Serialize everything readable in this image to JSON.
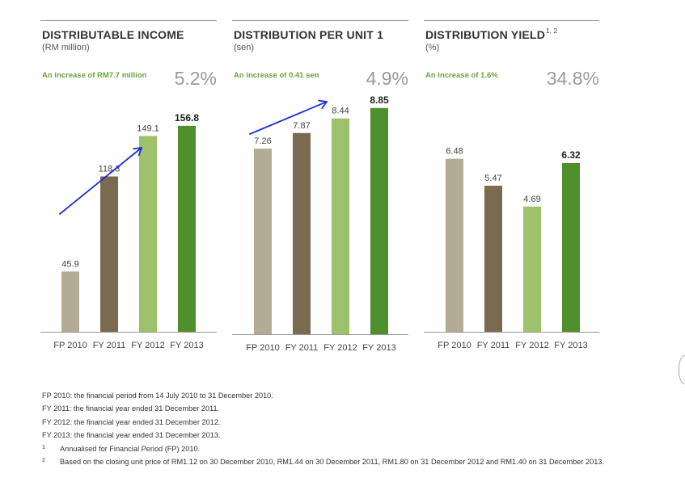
{
  "colors": [
    "#b3ab95",
    "#7a6a4f",
    "#9ec16b",
    "#4f8f2c"
  ],
  "annotation_color": "#1f2fd0",
  "chart_data": [
    {
      "type": "bar",
      "title": "DISTRIBUTABLE INCOME",
      "title_sup": "",
      "subtitle": "(RM million)",
      "increase_text": "An increase of RM7.7 million",
      "change_pct": "5.2%",
      "categories": [
        "FP 2010",
        "FY 2011",
        "FY 2012",
        "FY 2013"
      ],
      "values": [
        45.9,
        118.3,
        149.1,
        156.8
      ],
      "value_labels": [
        "45.9",
        "118.3",
        "149.1",
        "156.8"
      ],
      "ylim": [
        0,
        185
      ],
      "highlight_last": true,
      "annotation": "upward-arrow"
    },
    {
      "type": "bar",
      "title": "DISTRIBUTION PER UNIT 1",
      "title_sup": "",
      "subtitle": "(sen)",
      "increase_text": "An increase of 0.41 sen",
      "change_pct": "4.9%",
      "categories": [
        "FP 2010",
        "FY 2011",
        "FY 2012",
        "FY 2013"
      ],
      "values": [
        7.26,
        7.87,
        8.44,
        8.85
      ],
      "value_labels": [
        "7.26",
        "7.87",
        "8.44",
        "8.85"
      ],
      "ylim": [
        0,
        9.6
      ],
      "highlight_last": true,
      "annotation": "upward-arrow"
    },
    {
      "type": "bar",
      "title": "DISTRIBUTION YIELD",
      "title_sup": "1, 2",
      "subtitle": "(%)",
      "increase_text": "An increase of 1.6%",
      "change_pct": "34.8%",
      "categories": [
        "FP 2010",
        "FY 2011",
        "FY 2012",
        "FY 2013"
      ],
      "values": [
        6.48,
        5.47,
        4.69,
        6.32
      ],
      "value_labels": [
        "6.48",
        "5.47",
        "4.69",
        "6.32"
      ],
      "ylim": [
        0,
        9.1
      ],
      "highlight_last": true,
      "annotation": ""
    }
  ],
  "notes": [
    "FP 2010: the financial period from 14 July 2010 to 31 December 2010.",
    "FY 2011: the financial year ended 31 December 2011.",
    "FY 2012: the financial year ended 31 December 2012.",
    "FY 2013: the financial year ended 31 December 2013."
  ],
  "footnotes": [
    {
      "mark": "1",
      "text": "Annualised for Financial Period (FP) 2010."
    },
    {
      "mark": "2",
      "text": "Based on the closing unit price of RM1.12 on 30 December 2010, RM1.44 on 30 December 2011, RM1.80 on 31 December 2012 and RM1.40 on 31 December 2013."
    }
  ]
}
